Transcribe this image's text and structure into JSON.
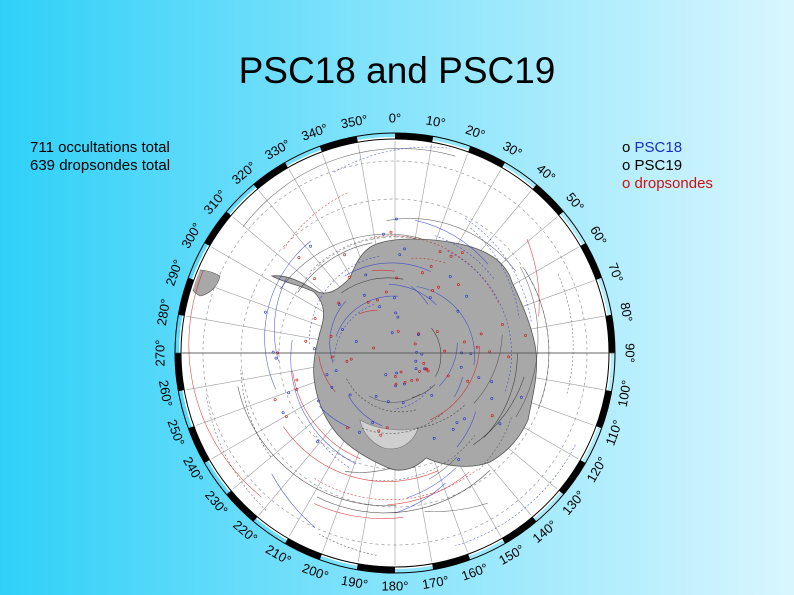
{
  "title": "PSC18 and PSC19",
  "stats": {
    "occultations": "711 occultations total",
    "dropsondes": "639 dropsondes total"
  },
  "legend": [
    {
      "marker": "o",
      "label": "PSC18",
      "color": "#1a2fbf"
    },
    {
      "marker": "o",
      "label": "PSC19",
      "color": "#000000"
    },
    {
      "marker": "o",
      "label": "dropsondes",
      "color": "#d01010"
    }
  ],
  "map": {
    "projection": "south-polar-stereographic",
    "longitude_labels": [
      "0°",
      "10°",
      "20°",
      "30°",
      "40°",
      "50°",
      "60°",
      "70°",
      "80°",
      "90°",
      "100°",
      "110°",
      "120°",
      "130°",
      "140°",
      "150°",
      "160°",
      "170°",
      "180°",
      "190°",
      "200°",
      "210°",
      "220°",
      "230°",
      "240°",
      "250°",
      "260°",
      "270°",
      "280°",
      "290°",
      "300°",
      "310°",
      "320°",
      "330°",
      "340°",
      "350°"
    ],
    "land_color": "#a8a8a8",
    "ocean_color": "#ffffff"
  }
}
